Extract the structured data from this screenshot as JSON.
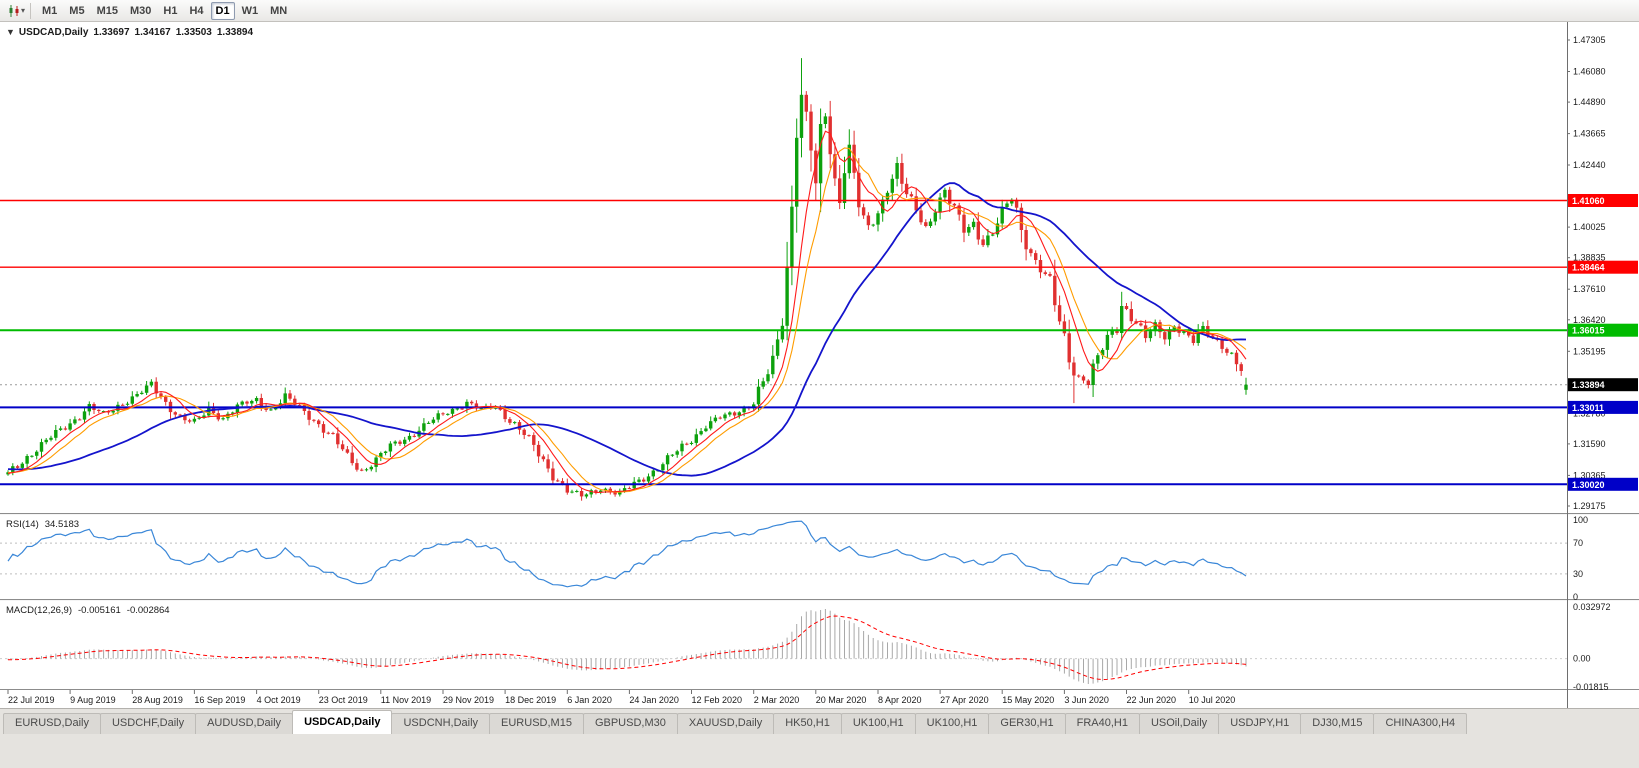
{
  "toolbar": {
    "timeframes": [
      "M1",
      "M5",
      "M15",
      "M30",
      "H1",
      "H4",
      "D1",
      "W1",
      "MN"
    ],
    "active_timeframe": "D1",
    "icons": [
      "candlestick-chart-icon",
      "dropdown-caret-icon"
    ]
  },
  "chart": {
    "title": "USDCAD,Daily",
    "open": "1.33697",
    "high": "1.34167",
    "low": "1.33503",
    "close": "1.33894"
  },
  "rsi_panel": {
    "label": "RSI(14)",
    "value": "34.5183",
    "axis_labels": [
      "100",
      "70",
      "30",
      "0"
    ],
    "levels": [
      70,
      30
    ]
  },
  "macd_panel": {
    "label": "MACD(12,26,9)",
    "value_main": "-0.005161",
    "value_signal": "-0.002864",
    "axis_labels": [
      "0.032972",
      "0.00",
      "-0.01815"
    ]
  },
  "price_axis": {
    "labels": [
      "1.47305",
      "1.46080",
      "1.44890",
      "1.43665",
      "1.42440",
      "1.40025",
      "1.38835",
      "1.37610",
      "1.36420",
      "1.35195",
      "1.32780",
      "1.31590",
      "1.30365",
      "1.29175"
    ]
  },
  "hlines": [
    {
      "label": "1.41060",
      "price": 1.4106,
      "color": "#ff0000",
      "width": 1.4
    },
    {
      "label": "1.38464",
      "price": 1.38464,
      "color": "#ff0000",
      "width": 1.4
    },
    {
      "label": "1.36015",
      "price": 1.36015,
      "color": "#00bb00",
      "width": 2
    },
    {
      "label": "1.33011",
      "price": 1.33011,
      "color": "#0000c8",
      "width": 2
    },
    {
      "label": "1.30020",
      "price": 1.3002,
      "color": "#0000c8",
      "width": 2
    }
  ],
  "current_price": {
    "label": "1.33894",
    "price": 1.33894,
    "tag_bg": "#000000"
  },
  "date_axis": {
    "labels": [
      "22 Jul 2019",
      "9 Aug 2019",
      "28 Aug 2019",
      "16 Sep 2019",
      "4 Oct 2019",
      "23 Oct 2019",
      "11 Nov 2019",
      "29 Nov 2019",
      "18 Dec 2019",
      "6 Jan 2020",
      "24 Jan 2020",
      "12 Feb 2020",
      "2 Mar 2020",
      "20 Mar 2020",
      "8 Apr 2020",
      "27 Apr 2020",
      "15 May 2020",
      "3 Jun 2020",
      "22 Jun 2020",
      "10 Jul 2020"
    ]
  },
  "tabs": {
    "items": [
      "EURUSD,Daily",
      "USDCHF,Daily",
      "AUDUSD,Daily",
      "USDCAD,Daily",
      "USDCNH,Daily",
      "EURUSD,M15",
      "GBPUSD,M30",
      "XAUUSD,Daily",
      "HK50,H1",
      "UK100,H1",
      "UK100,H1",
      "GER30,H1",
      "FRA40,H1",
      "USOil,Daily",
      "USDJPY,H1",
      "DJ30,M15",
      "CHINA300,H4"
    ],
    "active_index": 3
  },
  "colors": {
    "up": "#0da10d",
    "down": "#e03030",
    "ma_fast": "#ff1a1a",
    "ma_mid": "#ff9c00",
    "ma_slow": "#1414cc",
    "rsi": "#3a87d8",
    "macd_hist": "#a8a8a8",
    "macd_signal": "#ff0000",
    "axis_text": "#1a1a1a"
  },
  "chart_data": {
    "type": "candlestick",
    "symbol": "USDCAD",
    "period": "Daily",
    "n_candles": 260,
    "ylim": [
      1.29175,
      1.47305
    ],
    "rsi_ylim": [
      0,
      100
    ],
    "macd_ylim": [
      -0.01815,
      0.032972
    ],
    "last_close": 1.33894,
    "last_bar": {
      "open": 1.33697,
      "high": 1.34167,
      "low": 1.33503,
      "close": 1.33894
    },
    "close_anchors": [
      [
        0,
        1.304
      ],
      [
        4,
        1.311
      ],
      [
        8,
        1.317
      ],
      [
        13,
        1.324
      ],
      [
        17,
        1.3305
      ],
      [
        20,
        1.327
      ],
      [
        24,
        1.332
      ],
      [
        27,
        1.335
      ],
      [
        30,
        1.3385
      ],
      [
        33,
        1.332
      ],
      [
        36,
        1.3265
      ],
      [
        39,
        1.3235
      ],
      [
        42,
        1.3295
      ],
      [
        45,
        1.326
      ],
      [
        48,
        1.3305
      ],
      [
        52,
        1.333
      ],
      [
        55,
        1.329
      ],
      [
        58,
        1.334
      ],
      [
        61,
        1.33
      ],
      [
        64,
        1.3255
      ],
      [
        68,
        1.318
      ],
      [
        71,
        1.311
      ],
      [
        74,
        1.3055
      ],
      [
        77,
        1.3095
      ],
      [
        80,
        1.315
      ],
      [
        84,
        1.319
      ],
      [
        88,
        1.324
      ],
      [
        92,
        1.3285
      ],
      [
        96,
        1.332
      ],
      [
        99,
        1.329
      ],
      [
        102,
        1.3305
      ],
      [
        105,
        1.3255
      ],
      [
        108,
        1.3195
      ],
      [
        111,
        1.312
      ],
      [
        114,
        1.304
      ],
      [
        117,
        1.2975
      ],
      [
        120,
        1.2955
      ],
      [
        124,
        1.299
      ],
      [
        128,
        1.296
      ],
      [
        131,
        1.3005
      ],
      [
        134,
        1.304
      ],
      [
        137,
        1.308
      ],
      [
        140,
        1.313
      ],
      [
        143,
        1.318
      ],
      [
        146,
        1.323
      ],
      [
        149,
        1.326
      ],
      [
        152,
        1.328
      ],
      [
        155,
        1.331
      ],
      [
        156,
        1.3325
      ],
      [
        158,
        1.3395
      ],
      [
        160,
        1.3465
      ],
      [
        162,
        1.365
      ],
      [
        163,
        1.385
      ],
      [
        164,
        1.409
      ],
      [
        165,
        1.439
      ],
      [
        166,
        1.4515
      ],
      [
        167,
        1.4425
      ],
      [
        168,
        1.4305
      ],
      [
        169,
        1.4155
      ],
      [
        170,
        1.4365
      ],
      [
        171,
        1.4445
      ],
      [
        172,
        1.4305
      ],
      [
        173,
        1.4185
      ],
      [
        174,
        1.4125
      ],
      [
        175,
        1.4245
      ],
      [
        176,
        1.4305
      ],
      [
        177,
        1.4205
      ],
      [
        178,
        1.4085
      ],
      [
        179,
        1.4025
      ],
      [
        180,
        1.3995
      ],
      [
        182,
        1.4055
      ],
      [
        184,
        1.4165
      ],
      [
        186,
        1.4235
      ],
      [
        188,
        1.4125
      ],
      [
        190,
        1.4065
      ],
      [
        192,
        1.3995
      ],
      [
        194,
        1.4085
      ],
      [
        196,
        1.4145
      ],
      [
        198,
        1.4065
      ],
      [
        200,
        1.3985
      ],
      [
        202,
        1.4015
      ],
      [
        204,
        1.3945
      ],
      [
        206,
        1.3985
      ],
      [
        208,
        1.4055
      ],
      [
        210,
        1.4115
      ],
      [
        212,
        1.3995
      ],
      [
        214,
        1.3905
      ],
      [
        216,
        1.3845
      ],
      [
        218,
        1.3775
      ],
      [
        220,
        1.3625
      ],
      [
        222,
        1.35
      ],
      [
        223,
        1.344
      ],
      [
        224,
        1.342
      ],
      [
        226,
        1.3405
      ],
      [
        228,
        1.349
      ],
      [
        230,
        1.3565
      ],
      [
        232,
        1.3625
      ],
      [
        233,
        1.37
      ],
      [
        234,
        1.3685
      ],
      [
        236,
        1.363
      ],
      [
        238,
        1.357
      ],
      [
        240,
        1.3615
      ],
      [
        242,
        1.358
      ],
      [
        244,
        1.3625
      ],
      [
        246,
        1.359
      ],
      [
        248,
        1.3555
      ],
      [
        250,
        1.3605
      ],
      [
        252,
        1.3575
      ],
      [
        254,
        1.355
      ],
      [
        256,
        1.35
      ],
      [
        258,
        1.344
      ],
      [
        259,
        1.33894
      ]
    ],
    "wick_overrides": [
      {
        "i": 120,
        "low": 1.2938
      },
      {
        "i": 166,
        "high": 1.466
      },
      {
        "i": 223,
        "low": 1.3318
      }
    ],
    "warmup": {
      "bars": 40,
      "start": 1.309
    },
    "indicators": {
      "ma_fast_period": 7,
      "ma_mid_period": 11,
      "ma_slow_period": 34,
      "rsi_period": 14,
      "macd": [
        12,
        26,
        9
      ]
    }
  }
}
